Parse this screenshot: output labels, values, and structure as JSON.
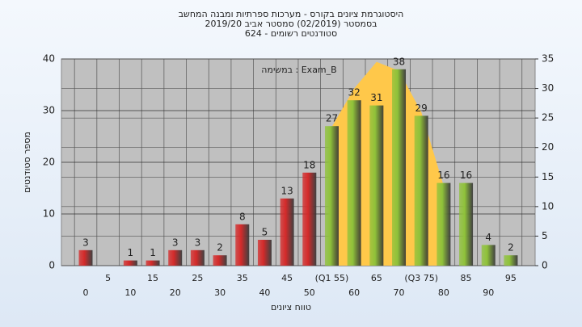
{
  "chart_data": {
    "type": "bar",
    "title": [
      "היסטוגרמת ציונים בקורס - מערכות ספרתיות ומבנה המחשב",
      "בסמסטר (02/2019) סמסטר אביב 2019/20",
      "סטודנטים רשומים - 624"
    ],
    "annotation": "Exam_B : במשימה",
    "y_label": "מספר סטודנטים",
    "x_label": "טווח ציונים",
    "categories": [
      "0",
      "5",
      "10",
      "15",
      "20",
      "25",
      "30",
      "35",
      "40",
      "45",
      "50",
      "(Q1 55)",
      "60",
      "65",
      "70",
      "(Q3 75)",
      "80",
      "85",
      "90",
      "95"
    ],
    "values": [
      3,
      0,
      1,
      1,
      3,
      3,
      2,
      8,
      5,
      13,
      18,
      27,
      32,
      31,
      38,
      29,
      16,
      16,
      4,
      2
    ],
    "colors": [
      "#d42a2a",
      "#d42a2a",
      "#d42a2a",
      "#d42a2a",
      "#d42a2a",
      "#d42a2a",
      "#d42a2a",
      "#d42a2a",
      "#d42a2a",
      "#d42a2a",
      "#d42a2a",
      "#8fc23a",
      "#8fc23a",
      "#8fc23a",
      "#8fc23a",
      "#8fc23a",
      "#8fc23a",
      "#8fc23a",
      "#8fc23a",
      "#8fc23a"
    ],
    "area": {
      "color": "#ffc84a",
      "axis": "y2",
      "x": [
        55,
        60,
        65,
        70,
        75,
        80
      ],
      "values": [
        23.5,
        30,
        34.5,
        33,
        26,
        13.5
      ]
    },
    "ylim": [
      0,
      40
    ],
    "yticks": [
      0,
      10,
      20,
      30,
      40
    ],
    "y2lim": [
      0,
      35
    ],
    "y2ticks": [
      0,
      5,
      10,
      15,
      20,
      25,
      30,
      35
    ],
    "grid": true
  }
}
